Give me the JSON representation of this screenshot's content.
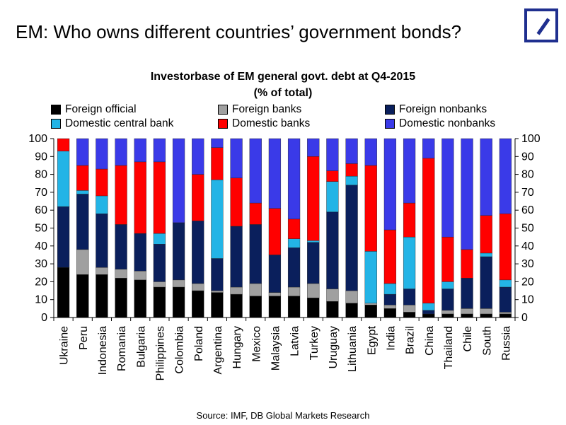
{
  "header": {
    "title": "EM: Who owns different countries’ government bonds?",
    "logo_icon": "deutsche-bank-logo"
  },
  "chart_data": {
    "type": "bar",
    "stacked": true,
    "title": "Investorbase of EM general govt. debt at Q4-2015",
    "subtitle": "(% of total)",
    "ylim": [
      0,
      100
    ],
    "yticks": [
      0,
      10,
      20,
      30,
      40,
      50,
      60,
      70,
      80,
      90,
      100
    ],
    "y_axis_both_sides": true,
    "grid": false,
    "legend_position": "top",
    "categories": [
      "Ukraine",
      "Peru",
      "Indonesia",
      "Romania",
      "Bulgaria",
      "Philippines",
      "Colombia",
      "Poland",
      "Argentina",
      "Hungary",
      "Mexico",
      "Malaysia",
      "Latvia",
      "Turkey",
      "Uruguay",
      "Lithuania",
      "Egypt",
      "India",
      "Brazil",
      "China",
      "Thailand",
      "Chile",
      "South",
      "Russia"
    ],
    "series": [
      {
        "name": "Foreign official",
        "color": "#000000",
        "values": [
          28,
          24,
          24,
          22,
          21,
          17,
          17,
          15,
          14,
          13,
          12,
          12,
          12,
          11,
          9,
          8,
          7,
          5,
          3,
          2,
          2,
          2,
          2,
          2
        ]
      },
      {
        "name": "Foreign banks",
        "color": "#a0a0a0",
        "values": [
          0,
          14,
          4,
          5,
          5,
          3,
          4,
          4,
          1,
          4,
          7,
          2,
          5,
          8,
          7,
          7,
          1,
          2,
          4,
          0,
          2,
          3,
          3,
          1
        ]
      },
      {
        "name": "Foreign nonbanks",
        "color": "#0a1f5c",
        "values": [
          34,
          31,
          30,
          25,
          21,
          21,
          32,
          35,
          18,
          34,
          33,
          21,
          22,
          23,
          43,
          59,
          0,
          6,
          9,
          2,
          12,
          17,
          29,
          14
        ]
      },
      {
        "name": "Domestic central bank",
        "color": "#23b4e6",
        "values": [
          31,
          2,
          10,
          0,
          0,
          6,
          0,
          0,
          44,
          0,
          0,
          0,
          5,
          1,
          17,
          5,
          29,
          6,
          29,
          4,
          4,
          0,
          2,
          4
        ]
      },
      {
        "name": "Domestic banks",
        "color": "#ff0000",
        "values": [
          7,
          14,
          15,
          33,
          40,
          40,
          0,
          26,
          18,
          27,
          12,
          26,
          11,
          47,
          6,
          7,
          48,
          30,
          19,
          81,
          25,
          16,
          21,
          37
        ]
      },
      {
        "name": "Domestic nonbanks",
        "color": "#3a3ae8",
        "values": [
          0,
          15,
          17,
          15,
          13,
          13,
          47,
          20,
          5,
          22,
          36,
          39,
          45,
          10,
          18,
          14,
          15,
          51,
          36,
          11,
          55,
          62,
          43,
          42
        ]
      }
    ]
  },
  "source": "Source: IMF, DB Global Markets Research"
}
